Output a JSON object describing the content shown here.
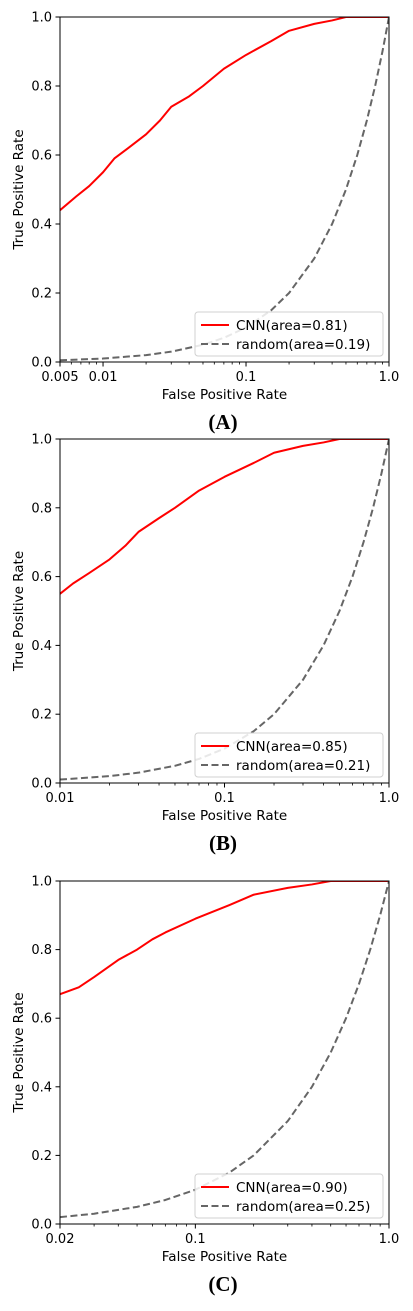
{
  "chart_data": [
    {
      "type": "line",
      "panel_label": "(A)",
      "xlabel": "False Positive Rate",
      "ylabel": "True Positive Rate",
      "xscale": "log",
      "xlim": [
        0.005,
        1.0
      ],
      "ylim": [
        0.0,
        1.0
      ],
      "xticks": [
        0.005,
        0.01,
        0.1,
        1.0
      ],
      "xtick_labels": [
        "0.005",
        "0.01",
        "0.1",
        "1.0"
      ],
      "yticks": [
        0.0,
        0.2,
        0.4,
        0.6,
        0.8,
        1.0
      ],
      "ytick_labels": [
        "0.0",
        "0.2",
        "0.4",
        "0.6",
        "0.8",
        "1.0"
      ],
      "legend_position": "lower-right",
      "series": [
        {
          "name": "CNN(area=0.81)",
          "color": "#ff0000",
          "style": "solid",
          "x": [
            0.005,
            0.0065,
            0.008,
            0.01,
            0.012,
            0.015,
            0.02,
            0.025,
            0.03,
            0.04,
            0.05,
            0.07,
            0.1,
            0.15,
            0.2,
            0.3,
            0.4,
            0.5,
            0.6,
            0.7,
            0.8,
            0.9,
            1.0
          ],
          "y": [
            0.44,
            0.48,
            0.51,
            0.55,
            0.59,
            0.62,
            0.66,
            0.7,
            0.74,
            0.77,
            0.8,
            0.85,
            0.89,
            0.93,
            0.96,
            0.98,
            0.99,
            1.0,
            1.0,
            1.0,
            1.0,
            1.0,
            1.0
          ]
        },
        {
          "name": "random(area=0.19)",
          "color": "#666666",
          "style": "dashed",
          "x": [
            0.005,
            0.01,
            0.02,
            0.03,
            0.05,
            0.07,
            0.1,
            0.15,
            0.2,
            0.3,
            0.4,
            0.5,
            0.6,
            0.7,
            0.8,
            0.9,
            1.0
          ],
          "y": [
            0.005,
            0.01,
            0.02,
            0.03,
            0.05,
            0.07,
            0.1,
            0.15,
            0.2,
            0.3,
            0.4,
            0.5,
            0.6,
            0.7,
            0.8,
            0.9,
            1.0
          ]
        }
      ]
    },
    {
      "type": "line",
      "panel_label": "(B)",
      "xlabel": "False Positive Rate",
      "ylabel": "True Positive Rate",
      "xscale": "log",
      "xlim": [
        0.01,
        1.0
      ],
      "ylim": [
        0.0,
        1.0
      ],
      "xticks": [
        0.01,
        0.1,
        1.0
      ],
      "xtick_labels": [
        "0.01",
        "0.1",
        "1.0"
      ],
      "yticks": [
        0.0,
        0.2,
        0.4,
        0.6,
        0.8,
        1.0
      ],
      "ytick_labels": [
        "0.0",
        "0.2",
        "0.4",
        "0.6",
        "0.8",
        "1.0"
      ],
      "legend_position": "lower-right",
      "series": [
        {
          "name": "CNN(area=0.85)",
          "color": "#ff0000",
          "style": "solid",
          "x": [
            0.01,
            0.012,
            0.015,
            0.02,
            0.025,
            0.03,
            0.04,
            0.05,
            0.07,
            0.1,
            0.15,
            0.2,
            0.3,
            0.4,
            0.5,
            0.6,
            0.7,
            0.8,
            0.9,
            1.0
          ],
          "y": [
            0.55,
            0.58,
            0.61,
            0.65,
            0.69,
            0.73,
            0.77,
            0.8,
            0.85,
            0.89,
            0.93,
            0.96,
            0.98,
            0.99,
            1.0,
            1.0,
            1.0,
            1.0,
            1.0,
            1.0
          ]
        },
        {
          "name": "random(area=0.21)",
          "color": "#666666",
          "style": "dashed",
          "x": [
            0.01,
            0.02,
            0.03,
            0.05,
            0.07,
            0.1,
            0.15,
            0.2,
            0.3,
            0.4,
            0.5,
            0.6,
            0.7,
            0.8,
            0.9,
            1.0
          ],
          "y": [
            0.01,
            0.02,
            0.03,
            0.05,
            0.07,
            0.1,
            0.15,
            0.2,
            0.3,
            0.4,
            0.5,
            0.6,
            0.7,
            0.8,
            0.9,
            1.0
          ]
        }
      ]
    },
    {
      "type": "line",
      "panel_label": "(C)",
      "xlabel": "False Positive Rate",
      "ylabel": "True Positive Rate",
      "xscale": "log",
      "xlim": [
        0.02,
        1.0
      ],
      "ylim": [
        0.0,
        1.0
      ],
      "xticks": [
        0.02,
        0.1,
        1.0
      ],
      "xtick_labels": [
        "0.02",
        "0.1",
        "1.0"
      ],
      "yticks": [
        0.0,
        0.2,
        0.4,
        0.6,
        0.8,
        1.0
      ],
      "ytick_labels": [
        "0.0",
        "0.2",
        "0.4",
        "0.6",
        "0.8",
        "1.0"
      ],
      "legend_position": "lower-right",
      "series": [
        {
          "name": "CNN(area=0.90)",
          "color": "#ff0000",
          "style": "solid",
          "x": [
            0.02,
            0.025,
            0.03,
            0.04,
            0.05,
            0.06,
            0.07,
            0.1,
            0.15,
            0.2,
            0.3,
            0.4,
            0.5,
            0.6,
            0.7,
            0.8,
            0.9,
            1.0
          ],
          "y": [
            0.67,
            0.69,
            0.72,
            0.77,
            0.8,
            0.83,
            0.85,
            0.89,
            0.93,
            0.96,
            0.98,
            0.99,
            1.0,
            1.0,
            1.0,
            1.0,
            1.0,
            1.0
          ]
        },
        {
          "name": "random(area=0.25)",
          "color": "#666666",
          "style": "dashed",
          "x": [
            0.02,
            0.03,
            0.05,
            0.07,
            0.1,
            0.15,
            0.2,
            0.3,
            0.4,
            0.5,
            0.6,
            0.7,
            0.8,
            0.9,
            1.0
          ],
          "y": [
            0.02,
            0.03,
            0.05,
            0.07,
            0.1,
            0.15,
            0.2,
            0.3,
            0.4,
            0.5,
            0.6,
            0.7,
            0.8,
            0.9,
            1.0
          ]
        }
      ]
    }
  ]
}
